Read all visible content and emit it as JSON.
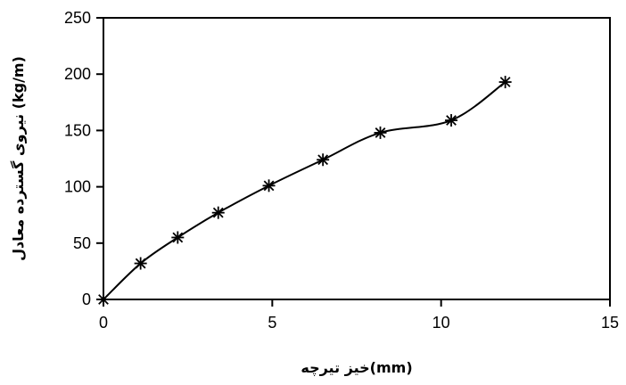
{
  "chart_data": {
    "type": "line",
    "title": "",
    "xlabel": "خیز تیرچه(mm)",
    "ylabel": "نیروی گسترده معادل (kg/m)",
    "xlim": [
      0,
      15
    ],
    "ylim": [
      0,
      250
    ],
    "x_ticks": [
      "0",
      "5",
      "10",
      "15"
    ],
    "y_ticks": [
      "0",
      "50",
      "100",
      "150",
      "200",
      "250"
    ],
    "grid": false,
    "legend": "none",
    "marker": "asterisk",
    "line_color": "#000000",
    "series": [
      {
        "x": [
          0,
          1.1,
          2.2,
          3.4,
          4.9,
          6.5,
          8.2,
          10.3,
          11.9
        ],
        "y": [
          0,
          32,
          55,
          77,
          101,
          124,
          148,
          159,
          193
        ]
      }
    ]
  }
}
